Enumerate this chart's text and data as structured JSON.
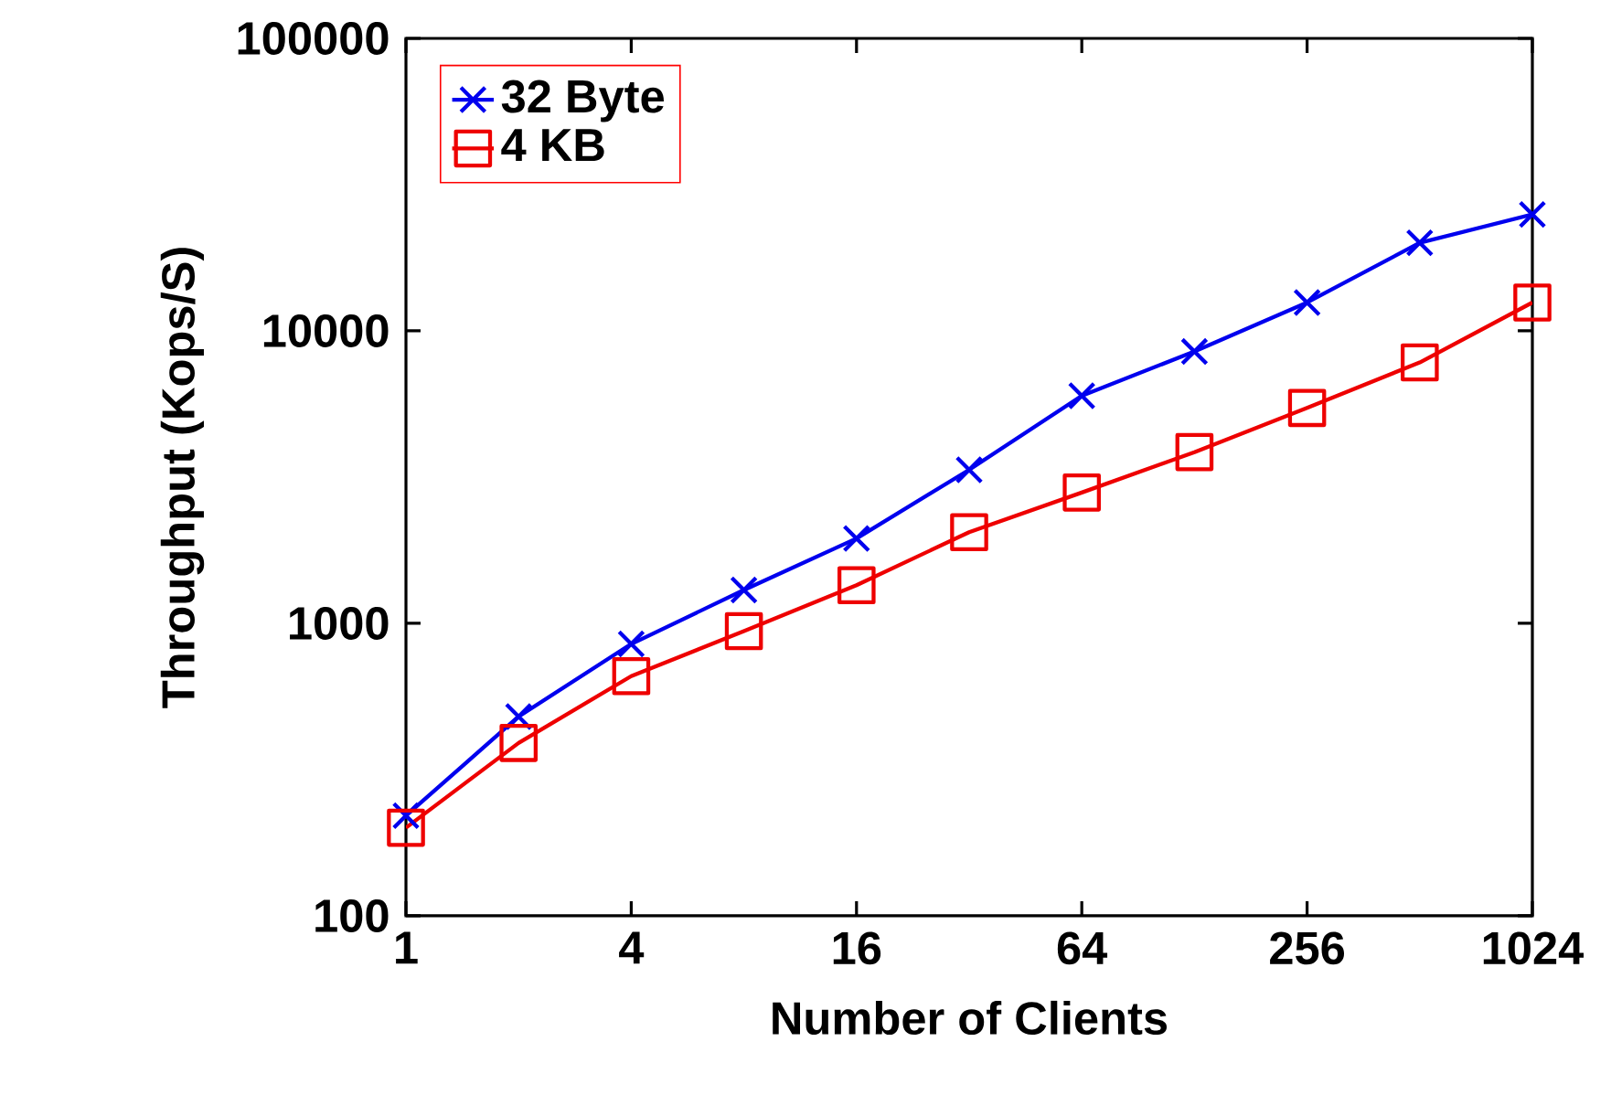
{
  "chart_data": {
    "type": "line",
    "xlabel": "Number of Clients",
    "ylabel": "Throughput (Kops/S)",
    "log": "xy",
    "x": [
      1,
      2,
      4,
      8,
      16,
      32,
      64,
      128,
      256,
      512,
      1024
    ],
    "xlim": [
      1,
      1024
    ],
    "ylim": [
      100,
      100000
    ],
    "xticks": [
      1,
      4,
      16,
      64,
      256,
      1024
    ],
    "yticks": [
      100,
      1000,
      10000,
      100000
    ],
    "legend": "top left",
    "grid": false,
    "series": [
      {
        "name": "32 Byte",
        "color": "#0000ee",
        "marker": "cross",
        "values": [
          220,
          480,
          850,
          1300,
          1950,
          3350,
          6000,
          8500,
          12500,
          20000,
          25000
        ]
      },
      {
        "name": "4 KB",
        "color": "#ee0000",
        "marker": "square",
        "values": [
          200,
          390,
          660,
          940,
          1350,
          2050,
          2800,
          3850,
          5450,
          7800,
          12500
        ]
      }
    ]
  }
}
